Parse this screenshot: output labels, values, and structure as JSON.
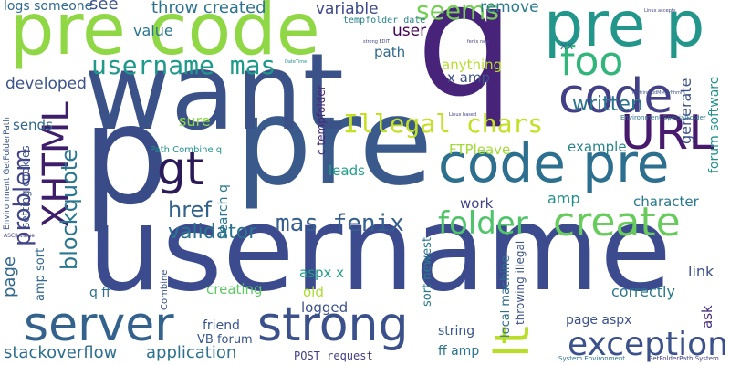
{
  "words": [
    {
      "id": "username",
      "text": "username"
    },
    {
      "id": "pre-big",
      "text": "pre"
    },
    {
      "id": "want",
      "text": "want"
    },
    {
      "id": "p-big",
      "text": "p"
    },
    {
      "id": "q-big",
      "text": "q"
    },
    {
      "id": "pre-code",
      "text": "pre code"
    },
    {
      "id": "code-pre",
      "text": "code pre"
    },
    {
      "id": "pre-p",
      "text": "pre p"
    },
    {
      "id": "server",
      "text": "server"
    },
    {
      "id": "strong",
      "text": "strong"
    },
    {
      "id": "code",
      "text": "code"
    },
    {
      "id": "url",
      "text": "URL"
    },
    {
      "id": "create",
      "text": "create"
    },
    {
      "id": "exception",
      "text": "exception"
    },
    {
      "id": "lt",
      "text": "lt"
    },
    {
      "id": "foo",
      "text": "foo"
    },
    {
      "id": "xhtml",
      "text": "XHTML"
    },
    {
      "id": "gt",
      "text": "gt"
    },
    {
      "id": "folder",
      "text": "folder"
    },
    {
      "id": "illegal-chars",
      "text": "Illegal chars"
    },
    {
      "id": "username-mas",
      "text": "username mas"
    },
    {
      "id": "mas-fenix",
      "text": "mas fenix"
    },
    {
      "id": "seems",
      "text": "seems"
    },
    {
      "id": "href",
      "text": "href"
    },
    {
      "id": "validator",
      "text": "validator"
    },
    {
      "id": "problem",
      "text": "problem"
    },
    {
      "id": "blockquote",
      "text": "blockquote"
    },
    {
      "id": "written",
      "text": "written"
    },
    {
      "id": "stackoverflow",
      "text": "stackoverflow"
    },
    {
      "id": "application",
      "text": "application"
    },
    {
      "id": "throw-created",
      "text": "throw created"
    },
    {
      "id": "variable",
      "text": "variable"
    },
    {
      "id": "remove",
      "text": "remove"
    },
    {
      "id": "logs-someone",
      "text": "logs someone"
    },
    {
      "id": "see",
      "text": "see"
    },
    {
      "id": "value",
      "text": "value"
    },
    {
      "id": "user",
      "text": "user"
    },
    {
      "id": "path",
      "text": "path"
    },
    {
      "id": "anything",
      "text": "anything"
    },
    {
      "id": "x-amp",
      "text": "x amp"
    },
    {
      "id": "developed",
      "text": "developed"
    },
    {
      "id": "sends",
      "text": "sends"
    },
    {
      "id": "sure",
      "text": "sure"
    },
    {
      "id": "generate",
      "text": "generate"
    },
    {
      "id": "forum-software",
      "text": "forum software"
    },
    {
      "id": "example",
      "text": "example"
    },
    {
      "id": "ftpleave",
      "text": "FTPleave"
    },
    {
      "id": "leads",
      "text": "leads"
    },
    {
      "id": "amp",
      "text": "amp"
    },
    {
      "id": "work",
      "text": "work"
    },
    {
      "id": "character",
      "text": "character"
    },
    {
      "id": "link",
      "text": "link"
    },
    {
      "id": "correctly",
      "text": "correctly"
    },
    {
      "id": "ask",
      "text": "ask"
    },
    {
      "id": "page-aspx",
      "text": "page aspx"
    },
    {
      "id": "string",
      "text": "string"
    },
    {
      "id": "ff-amp",
      "text": "ff amp"
    },
    {
      "id": "logged",
      "text": "logged"
    },
    {
      "id": "old",
      "text": "old"
    },
    {
      "id": "creating",
      "text": "creating"
    },
    {
      "id": "aspx-x",
      "text": "aspx x"
    },
    {
      "id": "friend",
      "text": "friend"
    },
    {
      "id": "vb-forum",
      "text": "VB forum"
    },
    {
      "id": "post-request",
      "text": "POST request"
    },
    {
      "id": "page",
      "text": "page"
    },
    {
      "id": "amp-sort",
      "text": "amp sort"
    },
    {
      "id": "q-ff",
      "text": "q ff"
    },
    {
      "id": "xx",
      "text": "xx"
    },
    {
      "id": "tempfolder-date",
      "text": "tempfolder date"
    },
    {
      "id": "setting-cookies",
      "text": "setting cookies"
    },
    {
      "id": "env-getfolderpath",
      "text": "Environment GetFolderPath"
    },
    {
      "id": "path-combine-q",
      "text": "Path Combine q"
    },
    {
      "id": "search-q",
      "text": "search q"
    },
    {
      "id": "c-tempfolder",
      "text": "c tempfolder"
    },
    {
      "id": "sort-newest",
      "text": "sort newest"
    },
    {
      "id": "local-machine",
      "text": "local machine"
    },
    {
      "id": "throwing-illegal",
      "text": "throwing illegal"
    },
    {
      "id": "env-specialfolder",
      "text": "Environment SpecialFolder"
    },
    {
      "id": "system-environment",
      "text": "System Environment"
    },
    {
      "id": "getfolderpath-system",
      "text": "GetFolderPath System"
    },
    {
      "id": "ascii-value",
      "text": "ASCII value"
    },
    {
      "id": "combine",
      "text": "Combine"
    },
    {
      "id": "strong-edit",
      "text": "strong EDIT"
    },
    {
      "id": "linux-accepts",
      "text": "Linux accepts"
    },
    {
      "id": "tostring-ddmmyyhhmm",
      "text": "ToString ddMMyyhhmm"
    },
    {
      "id": "linux-based",
      "text": "Linux based"
    },
    {
      "id": "fenix-new",
      "text": "fenix new"
    },
    {
      "id": "datetime",
      "text": "DateTime"
    }
  ]
}
